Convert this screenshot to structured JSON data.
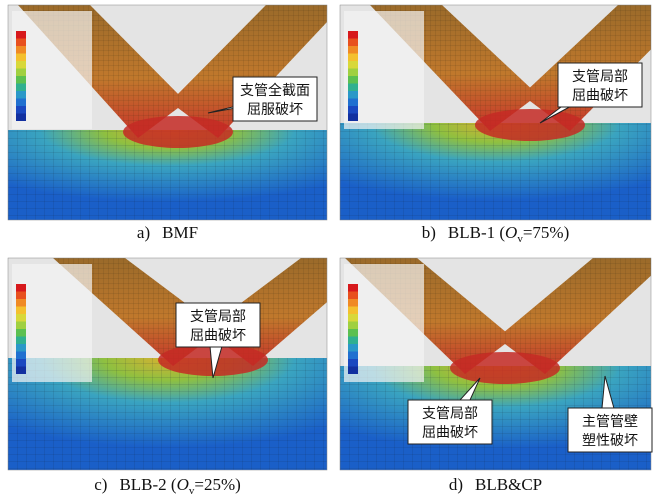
{
  "panels": [
    {
      "label": "a)",
      "caption": [
        {
          "text": "BMF"
        }
      ],
      "callouts": [
        {
          "lines": [
            "支管全截面",
            "屈服破坏"
          ]
        }
      ]
    },
    {
      "label": "b)",
      "caption": [
        {
          "text": "BLB-1 ("
        },
        {
          "text": "O",
          "style": "italic"
        },
        {
          "text": "v",
          "style": "sub"
        },
        {
          "text": "=75%)"
        }
      ],
      "callouts": [
        {
          "lines": [
            "支管局部",
            "屈曲破坏"
          ]
        }
      ]
    },
    {
      "label": "c)",
      "caption": [
        {
          "text": "BLB-2 ("
        },
        {
          "text": "O",
          "style": "italic"
        },
        {
          "text": "v",
          "style": "sub"
        },
        {
          "text": "=25%)"
        }
      ],
      "callouts": [
        {
          "lines": [
            "支管局部",
            "屈曲破坏"
          ]
        }
      ]
    },
    {
      "label": "d)",
      "caption": [
        {
          "text": "BLB&CP"
        }
      ],
      "callouts": [
        {
          "lines": [
            "支管局部",
            "屈曲破坏"
          ]
        },
        {
          "lines": [
            "主管管壁",
            "塑性破坏"
          ]
        }
      ]
    }
  ]
}
